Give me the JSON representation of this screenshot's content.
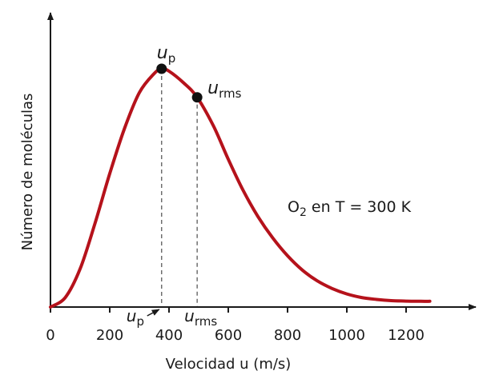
{
  "chart_data": {
    "type": "line",
    "xlabel": "Velocidad u (m/s)",
    "ylabel": "Número de moléculas",
    "xlim": [
      0,
      1400
    ],
    "x_ticks": [
      "0",
      "200",
      "400",
      "600",
      "800",
      "1000",
      "1200"
    ],
    "annotation": {
      "main": "O",
      "sub": "2",
      "rest": " en T = 300 K"
    },
    "points": {
      "up": {
        "symbol": "u",
        "sub": "p",
        "x": 375
      },
      "urms": {
        "symbol": "u",
        "sub": "rms",
        "x": 495
      }
    },
    "axis_markers": {
      "up": {
        "symbol": "u",
        "sub": "p"
      },
      "urms": {
        "symbol": "u",
        "sub": "rms"
      }
    },
    "series": [
      {
        "color": "#b5121b",
        "x": [
          0,
          50,
          100,
          150,
          200,
          250,
          300,
          350,
          375,
          400,
          450,
          495,
          550,
          600,
          650,
          700,
          750,
          800,
          850,
          900,
          950,
          1000,
          1050,
          1100,
          1150,
          1200,
          1250,
          1280
        ],
        "y": [
          0,
          0.04,
          0.16,
          0.35,
          0.56,
          0.75,
          0.9,
          0.98,
          1.0,
          0.99,
          0.94,
          0.88,
          0.76,
          0.62,
          0.49,
          0.38,
          0.29,
          0.215,
          0.155,
          0.11,
          0.078,
          0.055,
          0.04,
          0.032,
          0.027,
          0.025,
          0.024,
          0.024
        ]
      }
    ]
  }
}
